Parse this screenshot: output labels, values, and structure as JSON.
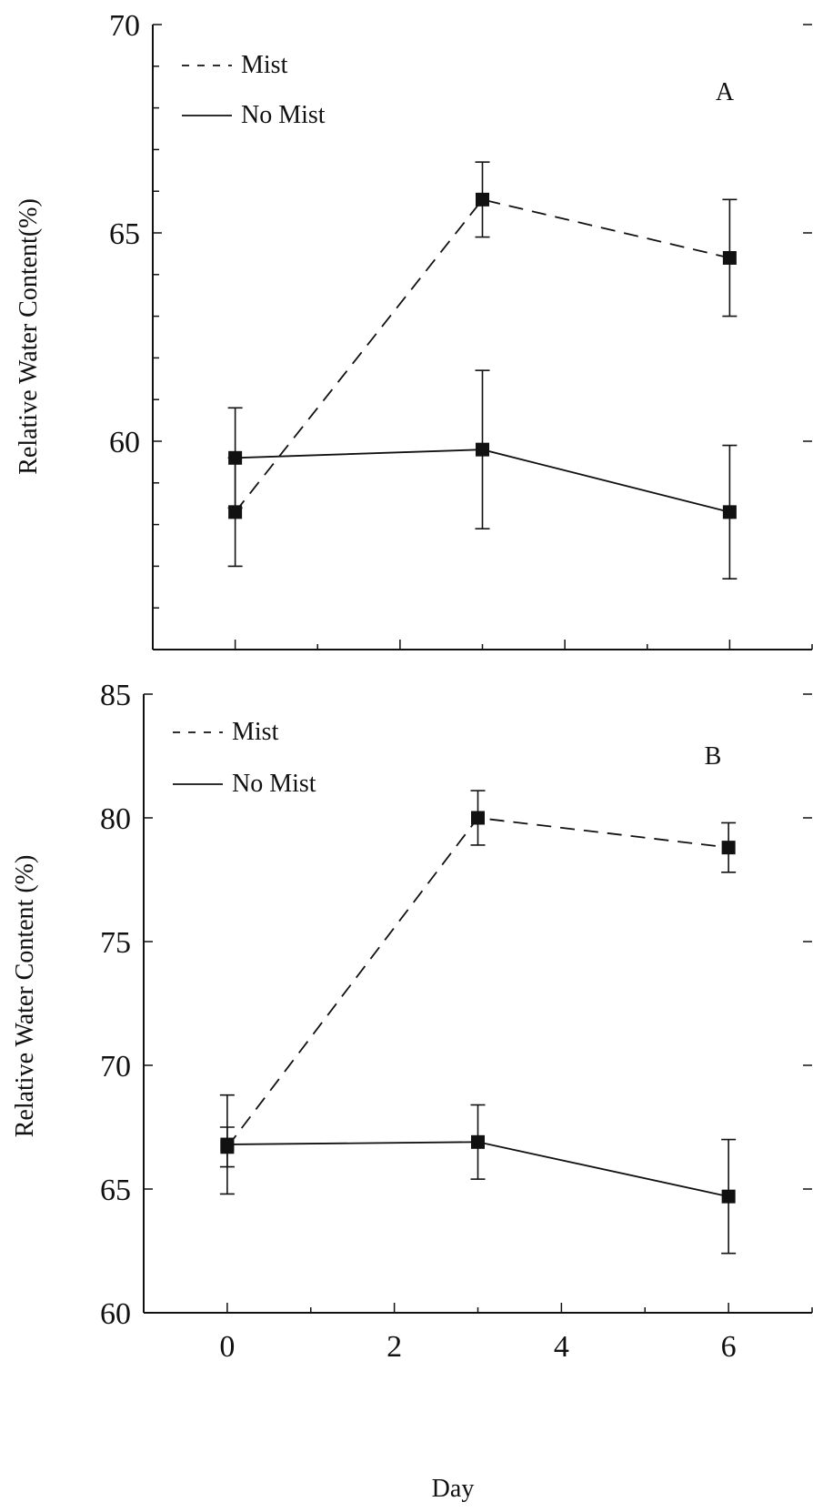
{
  "figure": {
    "xlabel": "Day"
  },
  "chart_data": [
    {
      "type": "line",
      "panel_label": "A",
      "ylabel": "Relative Water Content(%)",
      "xlabel": "",
      "ylim": [
        55,
        70
      ],
      "xlim": [
        -1,
        7
      ],
      "yticks_labeled": [
        60,
        65,
        70
      ],
      "yticks_minor_step": 1,
      "xticks": [
        0,
        2,
        4,
        6
      ],
      "xtick_labels_shown": false,
      "legend": {
        "position": "top-left",
        "entries": [
          {
            "label": "Mist",
            "style": "dashed"
          },
          {
            "label": "No Mist",
            "style": "solid"
          }
        ]
      },
      "series": [
        {
          "name": "Mist",
          "style": "dashed",
          "x": [
            0,
            3,
            6
          ],
          "y": [
            58.3,
            65.8,
            64.4
          ],
          "err": [
            1.3,
            0.9,
            1.4
          ]
        },
        {
          "name": "No Mist",
          "style": "solid",
          "x": [
            0,
            3,
            6
          ],
          "y": [
            59.6,
            59.8,
            58.3
          ],
          "err": [
            1.2,
            1.9,
            1.6
          ]
        }
      ]
    },
    {
      "type": "line",
      "panel_label": "B",
      "ylabel": "Relative Water Content (%)",
      "xlabel": "Day",
      "ylim": [
        60,
        85
      ],
      "xlim": [
        -1,
        7
      ],
      "yticks_labeled": [
        60,
        65,
        70,
        75,
        80,
        85
      ],
      "xticks": [
        0,
        2,
        4,
        6
      ],
      "xtick_labels": [
        "0",
        "2",
        "4",
        "6"
      ],
      "xtick_labels_shown": true,
      "legend": {
        "position": "top-left",
        "entries": [
          {
            "label": "Mist",
            "style": "dashed"
          },
          {
            "label": "No Mist",
            "style": "solid"
          }
        ]
      },
      "series": [
        {
          "name": "Mist",
          "style": "dashed",
          "x": [
            0,
            3,
            6
          ],
          "y": [
            66.7,
            80.0,
            78.8
          ],
          "err": [
            0.8,
            1.1,
            1.0
          ]
        },
        {
          "name": "No Mist",
          "style": "solid",
          "x": [
            0,
            3,
            6
          ],
          "y": [
            66.8,
            66.9,
            64.7
          ],
          "err": [
            2.0,
            1.5,
            2.3
          ]
        }
      ]
    }
  ]
}
